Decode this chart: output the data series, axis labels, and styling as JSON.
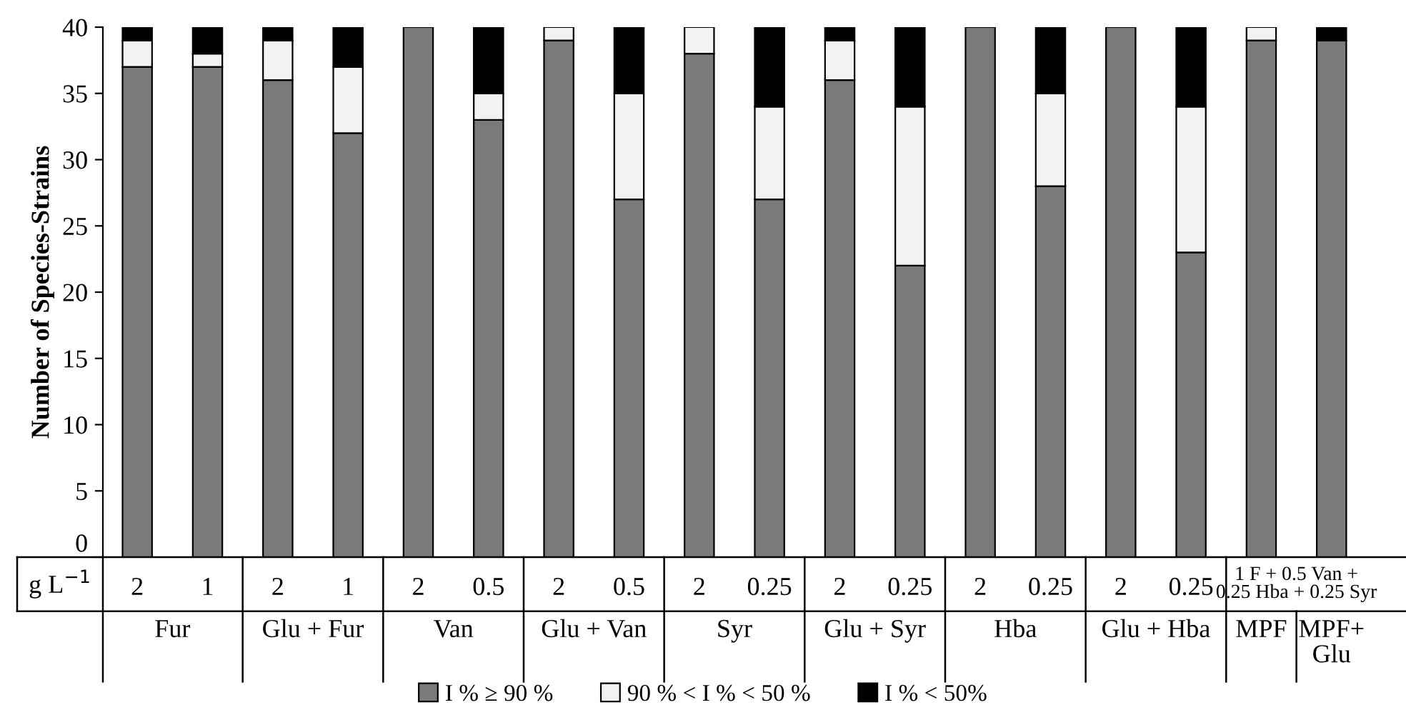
{
  "chart_data": {
    "type": "bar",
    "stacked": true,
    "ylabel": "Number of Species-Strains",
    "categories": [
      "2",
      "1",
      "2",
      "1",
      "2",
      "0.5",
      "2",
      "0.5",
      "2",
      "0.25",
      "2",
      "0.25",
      "2",
      "0.25",
      "2",
      "0.25",
      null,
      null
    ],
    "series": [
      {
        "name": "I % ≥ 90 %",
        "color": "#7a7a7a",
        "values": [
          37,
          37,
          36,
          32,
          40,
          33,
          39,
          27,
          38,
          27,
          36,
          22,
          40,
          28,
          40,
          23,
          39,
          39
        ]
      },
      {
        "name": "90 % < I % < 50 %",
        "color": "#f2f2f4",
        "values": [
          2,
          1,
          3,
          5,
          0,
          2,
          1,
          8,
          2,
          7,
          3,
          12,
          0,
          7,
          0,
          11,
          1,
          0
        ]
      },
      {
        "name": "I % < 50%",
        "color": "#000000",
        "values": [
          1,
          2,
          1,
          3,
          0,
          5,
          0,
          5,
          0,
          6,
          1,
          6,
          0,
          5,
          0,
          6,
          0,
          1
        ]
      }
    ],
    "ylim": [
      0,
      40
    ],
    "yticks": [
      0,
      5,
      10,
      15,
      20,
      25,
      30,
      35,
      40
    ],
    "legend": "bottom",
    "annotations": [
      "g L$^{−1}$",
      "1 F + 0.5 Van +\n0.25 Hba + 0.25 Syr",
      "Fur",
      "Glu + Fur",
      "Van",
      "Glu + Van",
      "Syr",
      "Glu + Syr",
      "Hba",
      "Glu + Hba",
      "MPF",
      "MPF+\nGlu"
    ]
  }
}
